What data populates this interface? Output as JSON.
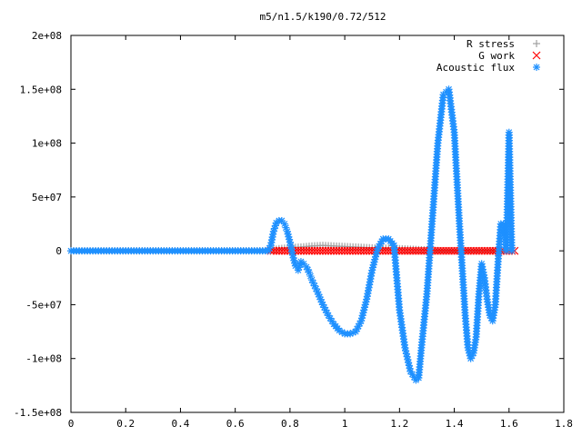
{
  "chart_data": {
    "type": "scatter",
    "title": "m5/n1.5/k190/0.72/512",
    "xlabel": "",
    "ylabel": "",
    "xlim": [
      0,
      1.8
    ],
    "ylim": [
      -150000000,
      200000000
    ],
    "x_ticks": [
      0,
      0.2,
      0.4,
      0.6,
      0.8,
      1,
      1.2,
      1.4,
      1.6,
      1.8
    ],
    "x_tick_labels": [
      "0",
      "0.2",
      "0.4",
      "0.6",
      "0.8",
      "1",
      "1.2",
      "1.4",
      "1.6",
      "1.8"
    ],
    "y_ticks": [
      -150000000,
      -100000000,
      -50000000,
      0,
      50000000,
      100000000,
      150000000,
      200000000
    ],
    "y_tick_labels": [
      "-1.5e+08",
      "-1e+08",
      "-5e+07",
      "0",
      "5e+07",
      "1e+08",
      "1.5e+08",
      "2e+08"
    ],
    "grid": false,
    "legend_position": "top-right",
    "series": [
      {
        "name": "R stress",
        "marker": "+",
        "color": "#a0a0a0",
        "x": [
          0.0,
          0.1,
          0.2,
          0.3,
          0.4,
          0.5,
          0.6,
          0.7,
          0.73,
          0.76,
          0.8,
          0.84,
          0.88,
          0.92,
          0.96,
          1.0,
          1.04,
          1.08,
          1.12,
          1.16,
          1.2,
          1.24,
          1.28,
          1.32,
          1.36,
          1.4,
          1.44,
          1.48,
          1.52,
          1.56,
          1.6
        ],
        "y": [
          0,
          0,
          0,
          0,
          0,
          0,
          0,
          0,
          800000,
          2000000,
          3000000,
          3500000,
          4500000,
          5000000,
          4500000,
          4000000,
          3500000,
          3000000,
          2500000,
          2500000,
          2000000,
          1500000,
          1000000,
          500000,
          0,
          0,
          0,
          0,
          0,
          0,
          0
        ]
      },
      {
        "name": "G work",
        "marker": "x",
        "color": "#ff0000",
        "x": [
          0.73,
          0.78,
          0.83,
          0.88,
          0.93,
          0.98,
          1.03,
          1.08,
          1.13,
          1.18,
          1.23,
          1.28,
          1.33,
          1.38,
          1.43,
          1.48,
          1.53,
          1.58,
          1.62
        ],
        "y": [
          0,
          0,
          0,
          0,
          0,
          0,
          0,
          0,
          0,
          0,
          0,
          0,
          0,
          0,
          0,
          0,
          0,
          0,
          0
        ]
      },
      {
        "name": "Acoustic flux",
        "marker": "*",
        "color": "#1e90ff",
        "x": [
          0.0,
          0.1,
          0.2,
          0.3,
          0.4,
          0.5,
          0.6,
          0.7,
          0.72,
          0.73,
          0.74,
          0.75,
          0.76,
          0.77,
          0.78,
          0.79,
          0.8,
          0.81,
          0.82,
          0.83,
          0.84,
          0.85,
          0.86,
          0.87,
          0.88,
          0.9,
          0.92,
          0.94,
          0.96,
          0.98,
          1.0,
          1.02,
          1.04,
          1.06,
          1.08,
          1.1,
          1.12,
          1.14,
          1.16,
          1.18,
          1.19,
          1.2,
          1.22,
          1.24,
          1.26,
          1.27,
          1.28,
          1.3,
          1.32,
          1.34,
          1.36,
          1.38,
          1.4,
          1.42,
          1.44,
          1.45,
          1.46,
          1.47,
          1.48,
          1.49,
          1.5,
          1.51,
          1.52,
          1.53,
          1.54,
          1.55,
          1.56,
          1.57,
          1.58,
          1.59,
          1.6,
          1.61
        ],
        "y": [
          0,
          0,
          0,
          0,
          0,
          0,
          0,
          0,
          0,
          5000000,
          18000000,
          26000000,
          28000000,
          28000000,
          25000000,
          18000000,
          8000000,
          -4000000,
          -14000000,
          -18000000,
          -10000000,
          -12000000,
          -15000000,
          -20000000,
          -27000000,
          -38000000,
          -50000000,
          -60000000,
          -68000000,
          -74000000,
          -77000000,
          -77000000,
          -75000000,
          -65000000,
          -45000000,
          -18000000,
          2000000,
          11000000,
          11000000,
          5000000,
          -25000000,
          -55000000,
          -90000000,
          -112000000,
          -120000000,
          -118000000,
          -90000000,
          -40000000,
          30000000,
          100000000,
          145000000,
          150000000,
          110000000,
          20000000,
          -60000000,
          -90000000,
          -100000000,
          -95000000,
          -80000000,
          -40000000,
          -12000000,
          -25000000,
          -45000000,
          -60000000,
          -65000000,
          -50000000,
          -10000000,
          25000000,
          25000000,
          0,
          110000000,
          0
        ]
      }
    ]
  }
}
